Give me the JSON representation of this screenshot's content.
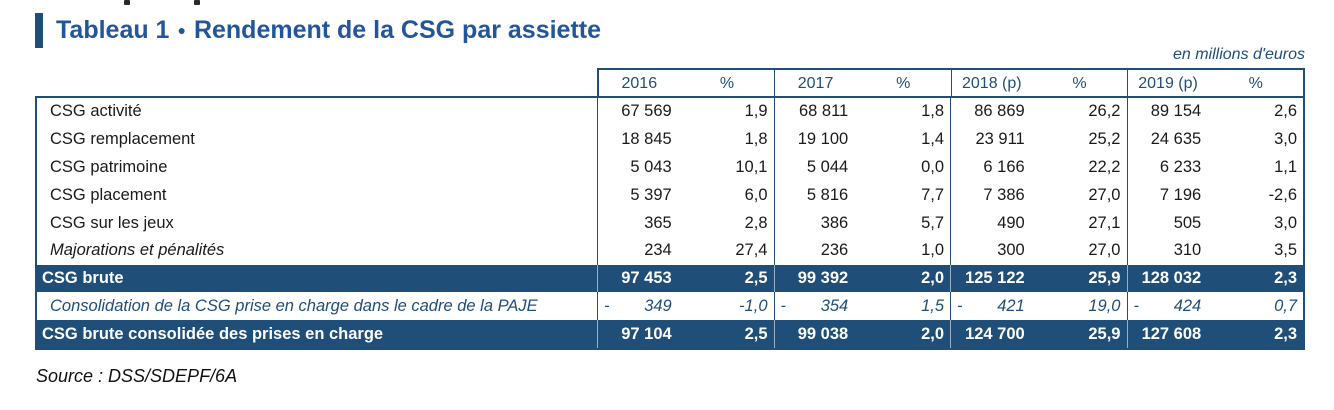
{
  "title": {
    "prefix": "Tableau 1",
    "bullet": "●",
    "text": "Rendement de la CSG par assiette"
  },
  "unit_note": "en millions d'euros",
  "source": "Source : DSS/SDEPF/6A",
  "colors": {
    "band": "#1F4E79",
    "title_text": "#21579A",
    "header_text": "#1F4E79",
    "body_text": "#1a1a1a"
  },
  "table": {
    "columns": [
      {
        "year": "2016",
        "pct_label": "%"
      },
      {
        "year": "2017",
        "pct_label": "%"
      },
      {
        "year": "2018 (p)",
        "pct_label": "%"
      },
      {
        "year": "2019 (p)",
        "pct_label": "%"
      }
    ],
    "rows": [
      {
        "label": "CSG activité",
        "style": "normal",
        "cells": [
          {
            "sign": "",
            "value": "67 569",
            "pct": "1,9"
          },
          {
            "sign": "",
            "value": "68 811",
            "pct": "1,8"
          },
          {
            "sign": "",
            "value": "86 869",
            "pct": "26,2"
          },
          {
            "sign": "",
            "value": "89 154",
            "pct": "2,6"
          }
        ]
      },
      {
        "label": "CSG remplacement",
        "style": "normal",
        "cells": [
          {
            "sign": "",
            "value": "18 845",
            "pct": "1,8"
          },
          {
            "sign": "",
            "value": "19 100",
            "pct": "1,4"
          },
          {
            "sign": "",
            "value": "23 911",
            "pct": "25,2"
          },
          {
            "sign": "",
            "value": "24 635",
            "pct": "3,0"
          }
        ]
      },
      {
        "label": "CSG patrimoine",
        "style": "normal",
        "cells": [
          {
            "sign": "",
            "value": "5 043",
            "pct": "10,1"
          },
          {
            "sign": "",
            "value": "5 044",
            "pct": "0,0"
          },
          {
            "sign": "",
            "value": "6 166",
            "pct": "22,2"
          },
          {
            "sign": "",
            "value": "6 233",
            "pct": "1,1"
          }
        ]
      },
      {
        "label": "CSG placement",
        "style": "normal",
        "cells": [
          {
            "sign": "",
            "value": "5 397",
            "pct": "6,0"
          },
          {
            "sign": "",
            "value": "5 816",
            "pct": "7,7"
          },
          {
            "sign": "",
            "value": "7 386",
            "pct": "27,0"
          },
          {
            "sign": "",
            "value": "7 196",
            "pct": "-2,6"
          }
        ]
      },
      {
        "label": "CSG sur les jeux",
        "style": "normal",
        "cells": [
          {
            "sign": "",
            "value": "365",
            "pct": "2,8"
          },
          {
            "sign": "",
            "value": "386",
            "pct": "5,7"
          },
          {
            "sign": "",
            "value": "490",
            "pct": "27,1"
          },
          {
            "sign": "",
            "value": "505",
            "pct": "3,0"
          }
        ]
      },
      {
        "label": "Majorations et pénalités",
        "style": "italic",
        "cells": [
          {
            "sign": "",
            "value": "234",
            "pct": "27,4"
          },
          {
            "sign": "",
            "value": "236",
            "pct": "1,0"
          },
          {
            "sign": "",
            "value": "300",
            "pct": "27,0"
          },
          {
            "sign": "",
            "value": "310",
            "pct": "3,5"
          }
        ]
      },
      {
        "label": "CSG brute",
        "style": "dark",
        "cells": [
          {
            "sign": "",
            "value": "97 453",
            "pct": "2,5"
          },
          {
            "sign": "",
            "value": "99 392",
            "pct": "2,0"
          },
          {
            "sign": "",
            "value": "125 122",
            "pct": "25,9"
          },
          {
            "sign": "",
            "value": "128 032",
            "pct": "2,3"
          }
        ]
      },
      {
        "label": "Consolidation de la CSG prise en charge dans le cadre de la PAJE",
        "style": "consolidation",
        "cells": [
          {
            "sign": "-",
            "value": "349",
            "pct": "-1,0"
          },
          {
            "sign": "-",
            "value": "354",
            "pct": "1,5"
          },
          {
            "sign": "-",
            "value": "421",
            "pct": "19,0"
          },
          {
            "sign": "-",
            "value": "424",
            "pct": "0,7"
          }
        ]
      },
      {
        "label": "CSG brute consolidée des prises en charge",
        "style": "dark",
        "cells": [
          {
            "sign": "",
            "value": "97 104",
            "pct": "2,5"
          },
          {
            "sign": "",
            "value": "99 038",
            "pct": "2,0"
          },
          {
            "sign": "",
            "value": "124 700",
            "pct": "25,9"
          },
          {
            "sign": "",
            "value": "127 608",
            "pct": "2,3"
          }
        ]
      }
    ]
  }
}
